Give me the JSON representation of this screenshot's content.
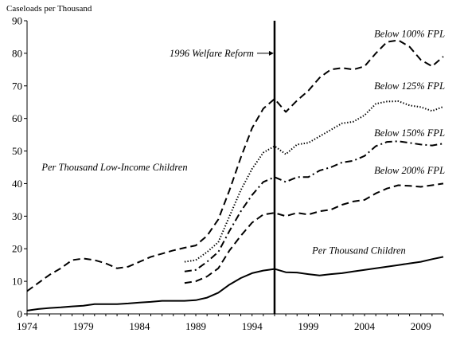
{
  "chart_data": {
    "type": "line",
    "title": "",
    "ylabel": "Caseloads per Thousand",
    "xlabel": "",
    "xlim": [
      1974,
      2011
    ],
    "ylim": [
      0,
      90
    ],
    "grid": false,
    "x_ticks": [
      1974,
      1979,
      1984,
      1989,
      1994,
      1999,
      2004,
      2009
    ],
    "y_ticks": [
      0,
      10,
      20,
      30,
      40,
      50,
      60,
      70,
      80,
      90
    ],
    "reference_line": {
      "x": 1996,
      "label": "1996 Welfare Reform"
    },
    "annotations": [
      "Per Thousand Low-Income Children"
    ],
    "series": [
      {
        "name": "Below 100% FPL",
        "style": "dashed",
        "points": [
          [
            1974,
            7
          ],
          [
            1975,
            9.5
          ],
          [
            1976,
            12
          ],
          [
            1977,
            14
          ],
          [
            1978,
            16.5
          ],
          [
            1979,
            17
          ],
          [
            1980,
            16.5
          ],
          [
            1981,
            15.5
          ],
          [
            1982,
            14
          ],
          [
            1983,
            14.5
          ],
          [
            1984,
            16
          ],
          [
            1985,
            17.5
          ],
          [
            1986,
            18.5
          ],
          [
            1987,
            19.5
          ],
          [
            1988,
            20.3
          ],
          [
            1989,
            21
          ],
          [
            1990,
            24
          ],
          [
            1991,
            29
          ],
          [
            1992,
            38
          ],
          [
            1993,
            48
          ],
          [
            1994,
            57
          ],
          [
            1995,
            63
          ],
          [
            1996,
            66
          ],
          [
            1997,
            62
          ],
          [
            1998,
            65.5
          ],
          [
            1999,
            68.5
          ],
          [
            2000,
            72.5
          ],
          [
            2001,
            75
          ],
          [
            2002,
            75.5
          ],
          [
            2003,
            75
          ],
          [
            2004,
            76
          ],
          [
            2005,
            80
          ],
          [
            2006,
            83.5
          ],
          [
            2007,
            84
          ],
          [
            2008,
            82
          ],
          [
            2009,
            78
          ],
          [
            2010,
            76
          ],
          [
            2011,
            79
          ]
        ]
      },
      {
        "name": "Below 125% FPL",
        "style": "dotted",
        "points": [
          [
            1988,
            16
          ],
          [
            1989,
            16.5
          ],
          [
            1990,
            19
          ],
          [
            1991,
            22
          ],
          [
            1992,
            30
          ],
          [
            1993,
            38
          ],
          [
            1994,
            44.5
          ],
          [
            1995,
            49.5
          ],
          [
            1996,
            51.5
          ],
          [
            1997,
            49
          ],
          [
            1998,
            52
          ],
          [
            1999,
            52.5
          ],
          [
            2000,
            54.5
          ],
          [
            2001,
            56.5
          ],
          [
            2002,
            58.5
          ],
          [
            2003,
            59
          ],
          [
            2004,
            61
          ],
          [
            2005,
            64.5
          ],
          [
            2006,
            65.2
          ],
          [
            2007,
            65.3
          ],
          [
            2008,
            64
          ],
          [
            2009,
            63.5
          ],
          [
            2010,
            62.3
          ],
          [
            2011,
            63.6
          ]
        ]
      },
      {
        "name": "Below 150% FPL",
        "style": "dashdot",
        "points": [
          [
            1988,
            13
          ],
          [
            1989,
            13.5
          ],
          [
            1990,
            16
          ],
          [
            1991,
            19
          ],
          [
            1992,
            25.5
          ],
          [
            1993,
            31.5
          ],
          [
            1994,
            36.5
          ],
          [
            1995,
            40.5
          ],
          [
            1996,
            42
          ],
          [
            1997,
            40.5
          ],
          [
            1998,
            42
          ],
          [
            1999,
            42
          ],
          [
            2000,
            44
          ],
          [
            2001,
            45
          ],
          [
            2002,
            46.5
          ],
          [
            2003,
            47
          ],
          [
            2004,
            48.5
          ],
          [
            2005,
            51.5
          ],
          [
            2006,
            52.8
          ],
          [
            2007,
            53
          ],
          [
            2008,
            52.5
          ],
          [
            2009,
            52
          ],
          [
            2010,
            51.7
          ],
          [
            2011,
            52.3
          ]
        ]
      },
      {
        "name": "Below 200% FPL",
        "style": "dashed",
        "points": [
          [
            1988,
            9.5
          ],
          [
            1989,
            10
          ],
          [
            1990,
            11.5
          ],
          [
            1991,
            14
          ],
          [
            1992,
            19.5
          ],
          [
            1993,
            24
          ],
          [
            1994,
            28
          ],
          [
            1995,
            30.5
          ],
          [
            1996,
            31
          ],
          [
            1997,
            30
          ],
          [
            1998,
            31
          ],
          [
            1999,
            30.5
          ],
          [
            2000,
            31.5
          ],
          [
            2001,
            32
          ],
          [
            2002,
            33.5
          ],
          [
            2003,
            34.5
          ],
          [
            2004,
            35
          ],
          [
            2005,
            37
          ],
          [
            2006,
            38.5
          ],
          [
            2007,
            39.5
          ],
          [
            2008,
            39.3
          ],
          [
            2009,
            39
          ],
          [
            2010,
            39.5
          ],
          [
            2011,
            40
          ]
        ]
      },
      {
        "name": "Per Thousand Children",
        "style": "solid",
        "points": [
          [
            1974,
            1
          ],
          [
            1975,
            1.5
          ],
          [
            1976,
            1.8
          ],
          [
            1977,
            2
          ],
          [
            1978,
            2.3
          ],
          [
            1979,
            2.5
          ],
          [
            1980,
            3
          ],
          [
            1981,
            3
          ],
          [
            1982,
            3
          ],
          [
            1983,
            3.2
          ],
          [
            1984,
            3.5
          ],
          [
            1985,
            3.7
          ],
          [
            1986,
            4
          ],
          [
            1987,
            4
          ],
          [
            1988,
            4
          ],
          [
            1989,
            4.2
          ],
          [
            1990,
            5
          ],
          [
            1991,
            6.5
          ],
          [
            1992,
            9
          ],
          [
            1993,
            11
          ],
          [
            1994,
            12.5
          ],
          [
            1995,
            13.3
          ],
          [
            1996,
            13.8
          ],
          [
            1997,
            12.8
          ],
          [
            1998,
            12.7
          ],
          [
            1999,
            12.2
          ],
          [
            2000,
            11.8
          ],
          [
            2001,
            12.2
          ],
          [
            2002,
            12.5
          ],
          [
            2003,
            13
          ],
          [
            2004,
            13.5
          ],
          [
            2005,
            14
          ],
          [
            2006,
            14.5
          ],
          [
            2007,
            15
          ],
          [
            2008,
            15.5
          ],
          [
            2009,
            16
          ],
          [
            2010,
            16.8
          ],
          [
            2011,
            17.5
          ]
        ]
      }
    ]
  }
}
